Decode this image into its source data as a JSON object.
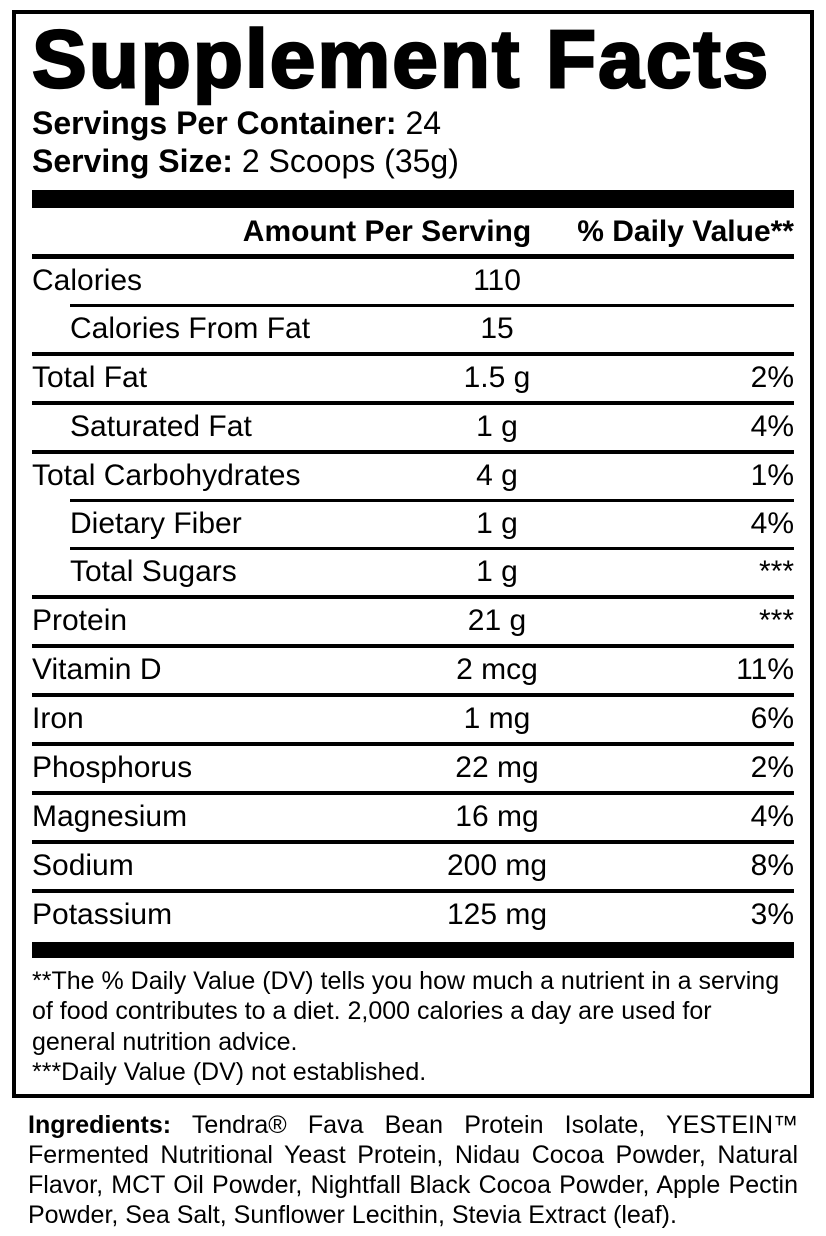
{
  "label": {
    "title": "Supplement Facts",
    "servings_per_container": {
      "label": "Servings Per Container:",
      "value": "24"
    },
    "serving_size": {
      "label": "Serving Size:",
      "value": "2 Scoops (35g)"
    },
    "columns": {
      "amount": "Amount Per Serving",
      "daily_value": "% Daily Value**"
    },
    "rows": [
      {
        "name": "Calories",
        "amount": "110",
        "dv": ""
      },
      {
        "name": "Calories From Fat",
        "amount": "15",
        "dv": ""
      },
      {
        "name": "Total Fat",
        "amount": "1.5 g",
        "dv": "2%"
      },
      {
        "name": "Saturated Fat",
        "amount": "1 g",
        "dv": "4%"
      },
      {
        "name": "Total Carbohydrates",
        "amount": "4 g",
        "dv": "1%"
      },
      {
        "name": "Dietary Fiber",
        "amount": "1 g",
        "dv": "4%"
      },
      {
        "name": "Total Sugars",
        "amount": "1 g",
        "dv": "***"
      },
      {
        "name": "Protein",
        "amount": "21 g",
        "dv": "***"
      },
      {
        "name": "Vitamin D",
        "amount": "2 mcg",
        "dv": "11%"
      },
      {
        "name": "Iron",
        "amount": "1 mg",
        "dv": "6%"
      },
      {
        "name": "Phosphorus",
        "amount": "22 mg",
        "dv": "2%"
      },
      {
        "name": "Magnesium",
        "amount": "16 mg",
        "dv": "4%"
      },
      {
        "name": "Sodium",
        "amount": "200 mg",
        "dv": "8%"
      },
      {
        "name": "Potassium",
        "amount": "125 mg",
        "dv": "3%"
      }
    ],
    "footnotes": [
      "**The % Daily Value (DV) tells you how much a nutrient in a serving of food contributes to a diet. 2,000 calories a day are used for general nutrition advice.",
      "***Daily Value (DV) not established."
    ],
    "ingredients": {
      "label": "Ingredients:",
      "text": "Tendra® Fava Bean Protein Isolate, YESTEIN™ Fermented Nutritional Yeast Protein, Nidau Cocoa Powder, Natural Flavor, MCT Oil Powder, Nightfall Black Cocoa Powder, Apple Pectin Powder, Sea Salt, Sunflower Lecithin, Stevia Extract (leaf)."
    },
    "colors": {
      "text": "#000000",
      "background": "#ffffff"
    }
  }
}
